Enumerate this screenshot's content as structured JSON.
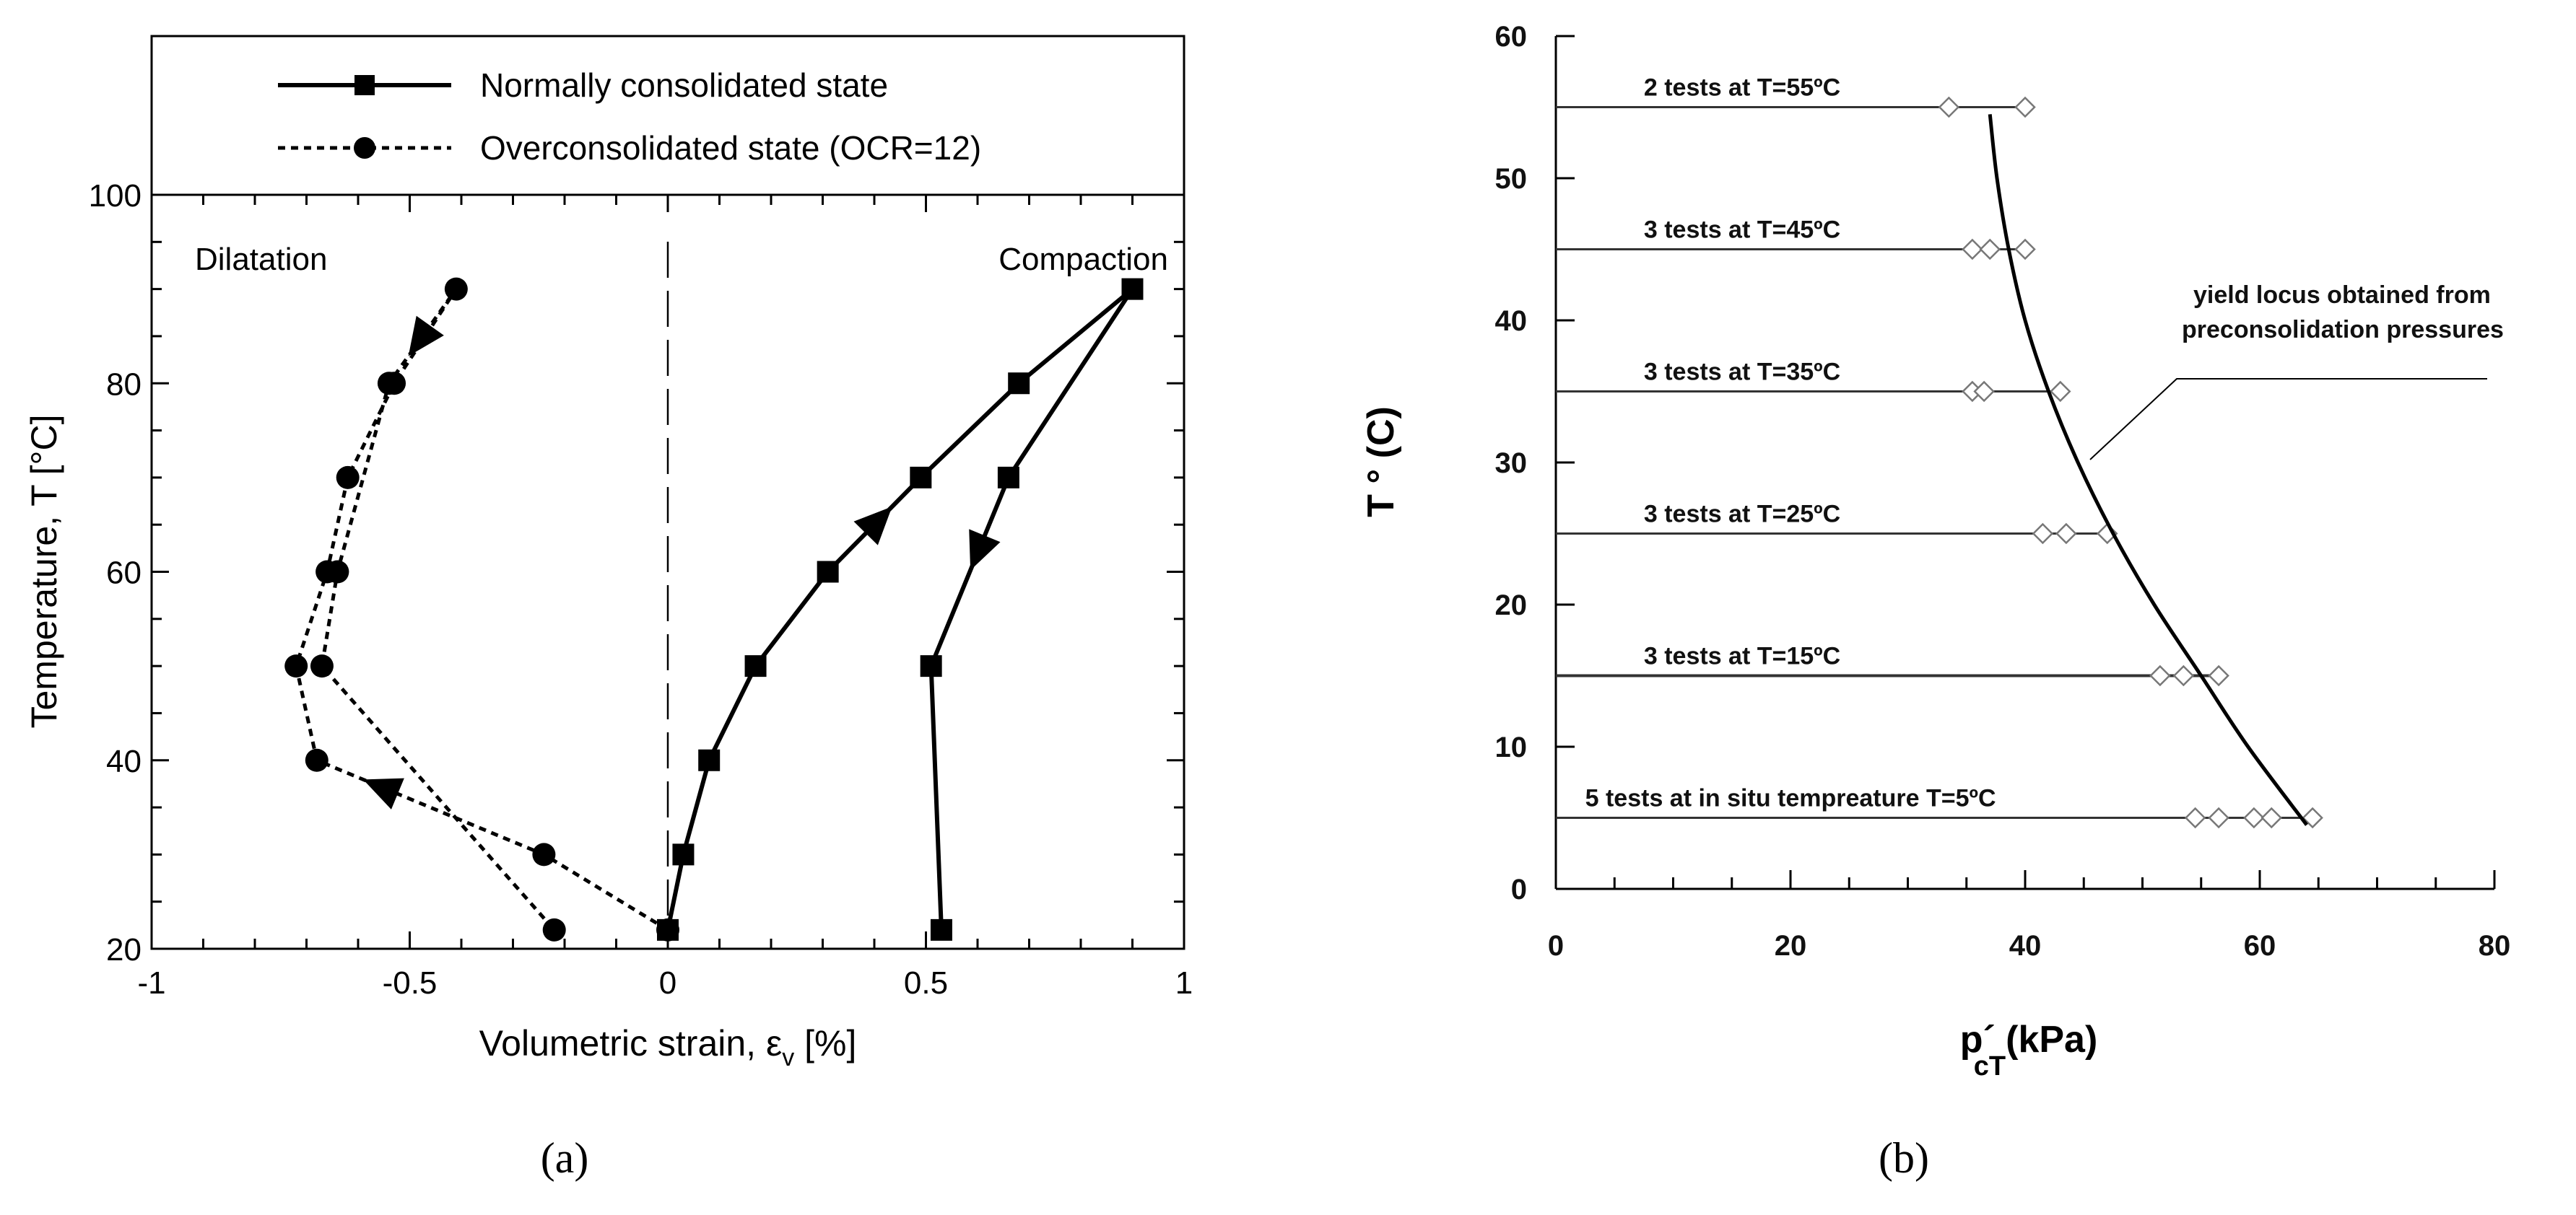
{
  "chart_data": [
    {
      "type": "line",
      "panel_label": "(a)",
      "xlabel": "Volumetric strain, ε",
      "xlabel_sub": "v",
      "xlabel_unit": " [%]",
      "ylabel": "Temperature, T [°C]",
      "xlim": [
        -1,
        1
      ],
      "ylim": [
        20,
        100
      ],
      "xticks": [
        -1,
        -0.5,
        0,
        0.5,
        1
      ],
      "xtick_labels": [
        "-1",
        "-0.5",
        "0",
        "0.5",
        "1"
      ],
      "yticks": [
        20,
        40,
        60,
        80,
        100
      ],
      "ytick_labels": [
        "20",
        "40",
        "60",
        "80",
        "100"
      ],
      "annotations": {
        "left": "Dilatation",
        "right": "Compaction"
      },
      "legend": {
        "placement": "top",
        "entries": [
          "Normally consolidated state",
          "Overconsolidated state (OCR=12)"
        ]
      },
      "series": [
        {
          "name": "Normally consolidated state",
          "style": "solid",
          "marker": "square",
          "x": [
            0.0,
            0.03,
            0.08,
            0.17,
            0.31,
            0.49,
            0.68,
            0.9,
            0.66,
            0.51,
            0.53
          ],
          "y": [
            22,
            30,
            40,
            50,
            60,
            70,
            80,
            90,
            70,
            50,
            22
          ]
        },
        {
          "name": "Overconsolidated state (OCR=12)",
          "style": "dotted",
          "marker": "circle",
          "x": [
            0.0,
            -0.24,
            -0.68,
            -0.72,
            -0.66,
            -0.62,
            -0.53,
            -0.41,
            -0.54,
            -0.64,
            -0.67,
            -0.22
          ],
          "y": [
            22,
            30,
            40,
            50,
            60,
            70,
            80,
            90,
            80,
            60,
            50,
            22
          ]
        }
      ]
    },
    {
      "type": "scatter",
      "panel_label": "(b)",
      "xlabel": "p´",
      "xlabel_sub": "cT",
      "xlabel_unit": "(kPa)",
      "ylabel": "T ° (C)",
      "xlim": [
        0,
        80
      ],
      "ylim": [
        0,
        60
      ],
      "xticks": [
        0,
        20,
        40,
        60,
        80
      ],
      "xtick_labels": [
        "0",
        "20",
        "40",
        "60",
        "80"
      ],
      "yticks": [
        0,
        10,
        20,
        30,
        40,
        50,
        60
      ],
      "ytick_labels": [
        "0",
        "10",
        "20",
        "30",
        "40",
        "50",
        "60"
      ],
      "groups": [
        {
          "label": "2 tests at T=55ºC",
          "temperature": 55,
          "points": [
            33.5,
            40.0
          ]
        },
        {
          "label": "3 tests at T=45ºC",
          "temperature": 45,
          "points": [
            35.5,
            37.0,
            40.0
          ]
        },
        {
          "label": "3 tests at T=35ºC",
          "temperature": 35,
          "points": [
            35.5,
            36.5,
            43.0
          ]
        },
        {
          "label": "3 tests at T=25ºC",
          "temperature": 25,
          "points": [
            41.5,
            43.5,
            47.0
          ]
        },
        {
          "label": "3 tests at T=15ºC",
          "temperature": 15,
          "points": [
            51.5,
            53.5,
            56.5
          ]
        },
        {
          "label": "5 tests at in situ tempreature T=5ºC",
          "temperature": 5,
          "points": [
            54.5,
            56.5,
            59.5,
            61.0,
            64.5
          ]
        }
      ],
      "yield_locus": {
        "label_line1": "yield locus obtained from",
        "label_line2": "preconsolidation pressures",
        "x": [
          37.0,
          37.6,
          38.6,
          40.0,
          42.0,
          44.5,
          47.5,
          51.0,
          55.0,
          59.0,
          64.0
        ],
        "y": [
          54.5,
          50,
          45,
          40,
          35,
          30,
          25,
          20,
          15,
          10,
          4.5
        ]
      }
    }
  ]
}
